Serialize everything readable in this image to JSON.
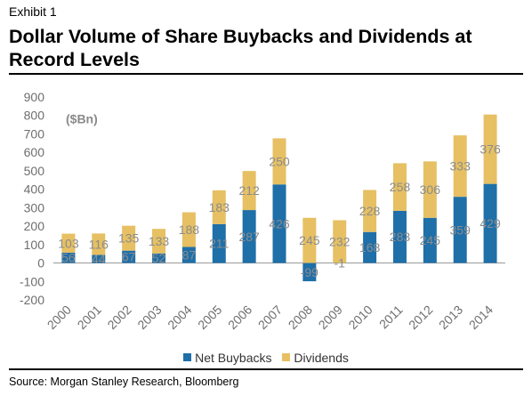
{
  "header": {
    "exhibit": "Exhibit 1",
    "title": "Dollar Volume of Share Buybacks and Dividends at Record Levels"
  },
  "footer": {
    "source": "Source: Morgan Stanley Research, Bloomberg"
  },
  "chart_data": {
    "type": "bar",
    "stacked": true,
    "title": "Dollar Volume of Share Buybacks and Dividends at Record Levels",
    "unit_label": "($Bn)",
    "xlabel": "",
    "ylabel": "",
    "categories": [
      "2000",
      "2001",
      "2002",
      "2003",
      "2004",
      "2005",
      "2006",
      "2007",
      "2008",
      "2009",
      "2010",
      "2011",
      "2012",
      "2013",
      "2014"
    ],
    "series": [
      {
        "name": "Net Buybacks",
        "color": "#1f6fa8",
        "values": [
          56,
          44,
          67,
          52,
          87,
          211,
          287,
          426,
          -99,
          -1,
          168,
          283,
          245,
          359,
          429
        ]
      },
      {
        "name": "Dividends",
        "color": "#e6c063",
        "values": [
          103,
          116,
          135,
          133,
          188,
          183,
          212,
          250,
          245,
          232,
          228,
          258,
          306,
          333,
          376
        ]
      }
    ],
    "ylim": [
      -200,
      900
    ],
    "yticks": [
      -200,
      -100,
      0,
      100,
      200,
      300,
      400,
      500,
      600,
      700,
      800,
      900
    ],
    "grid": false,
    "legend_position": "bottom"
  }
}
